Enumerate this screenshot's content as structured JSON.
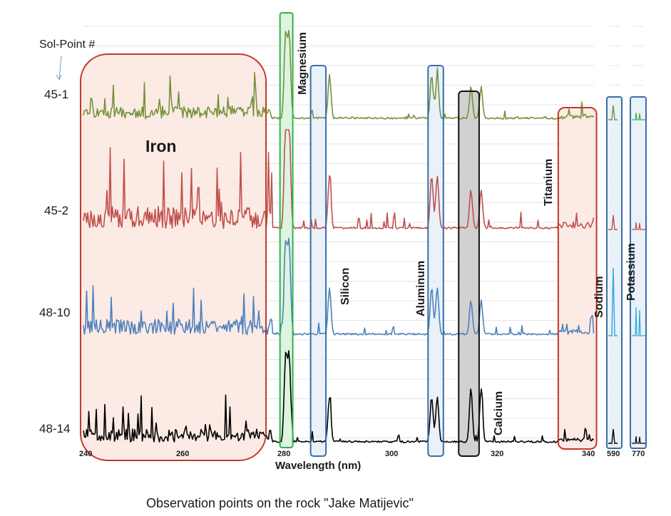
{
  "chart_data": {
    "type": "line",
    "title": "Observation points on the rock \"Jake Matijevic\"",
    "xlabel": "Wavelength (nm)",
    "ylabel": "Sol-Point #",
    "main_xlim": [
      240,
      340
    ],
    "main_ticks": [
      240,
      260,
      280,
      300,
      320,
      340
    ],
    "extra_ticks": [
      590,
      770
    ],
    "series": [
      {
        "name": "45-1",
        "color": "#76923c",
        "scale": 0.9,
        "seed": 11
      },
      {
        "name": "45-2",
        "color": "#c0504d",
        "scale": 1.6,
        "seed": 23
      },
      {
        "name": "48-10",
        "color": "#4f81bd",
        "scale": 1.15,
        "seed": 37
      },
      {
        "name": "48-14",
        "color": "#000000",
        "scale": 1.0,
        "seed": 51
      }
    ],
    "element_regions": [
      {
        "name": "Iron",
        "from": 240,
        "to": 277
      },
      {
        "name": "Magnesium",
        "from": 278.5,
        "to": 281
      },
      {
        "name": "Silicon",
        "from": 284.5,
        "to": 287.5
      },
      {
        "name": "Aluminum",
        "from": 307.5,
        "to": 310.5
      },
      {
        "name": "Calcium",
        "from": 313.5,
        "to": 317.5
      },
      {
        "name": "Titanium",
        "from": 333,
        "to": 340.5
      },
      {
        "name": "Sodium",
        "window": 590
      },
      {
        "name": "Potassium",
        "window": 770
      }
    ],
    "peaks": [
      {
        "element": "Magnesium",
        "wavelength": 279.6
      },
      {
        "element": "Magnesium",
        "wavelength": 280.3
      },
      {
        "element": "Silicon",
        "wavelength": 288.2
      },
      {
        "element": "Aluminum",
        "wavelength": 308.2
      },
      {
        "element": "Aluminum",
        "wavelength": 309.3
      },
      {
        "element": "Calcium",
        "wavelength": 315.9
      },
      {
        "element": "Calcium",
        "wavelength": 317.9
      },
      {
        "element": "Sodium",
        "wavelength": 589.6
      },
      {
        "element": "Potassium",
        "wavelength": 766.5
      },
      {
        "element": "Potassium",
        "wavelength": 769.9
      }
    ]
  }
}
